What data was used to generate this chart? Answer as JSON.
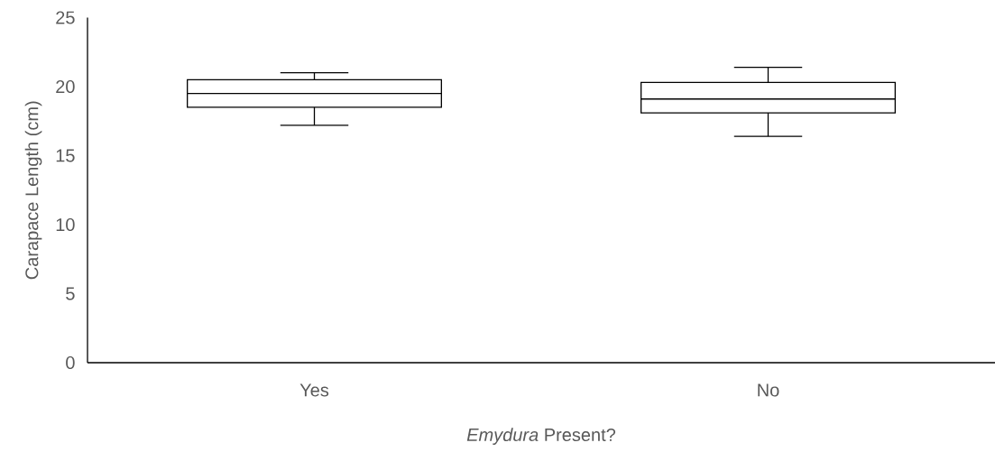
{
  "chart_data": {
    "type": "box",
    "xlabel": "*Emydura* Present?",
    "ylabel": "Carapace Length (cm)",
    "categories": [
      "Yes",
      "No"
    ],
    "boxes": [
      {
        "low": 17.2,
        "q1": 18.5,
        "median": 19.5,
        "q3": 20.5,
        "high": 21.0
      },
      {
        "low": 16.4,
        "q1": 18.1,
        "median": 19.1,
        "q3": 20.3,
        "high": 21.4
      }
    ],
    "ylim": [
      0,
      25
    ],
    "yticks": [
      0,
      5,
      10,
      15,
      20,
      25
    ]
  }
}
